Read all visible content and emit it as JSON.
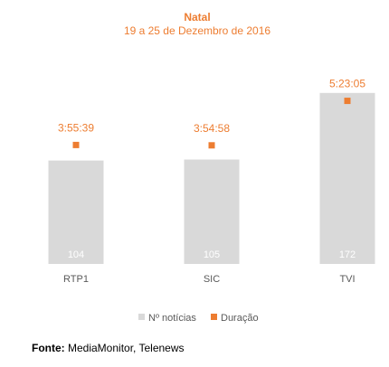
{
  "chart_data": {
    "type": "bar",
    "title": "Natal",
    "subtitle": "19 a 25 de Dezembro de 2016",
    "categories": [
      "RTP1",
      "SIC",
      "TVI"
    ],
    "series": [
      {
        "name": "Nº notícias",
        "type": "bar",
        "values": [
          104,
          105,
          172
        ]
      },
      {
        "name": "Duração",
        "type": "scatter",
        "values": [
          "3:55:39",
          "3:54:58",
          "5:23:05"
        ]
      }
    ],
    "ylim": [
      0,
      220
    ],
    "grid": false,
    "legend": "bottom"
  },
  "source": {
    "label": "Fonte:",
    "text": "MediaMonitor, Telenews"
  },
  "colors": {
    "bar": "#d9d9d9",
    "marker": "#ed7d31",
    "title": "#ed7d31"
  }
}
